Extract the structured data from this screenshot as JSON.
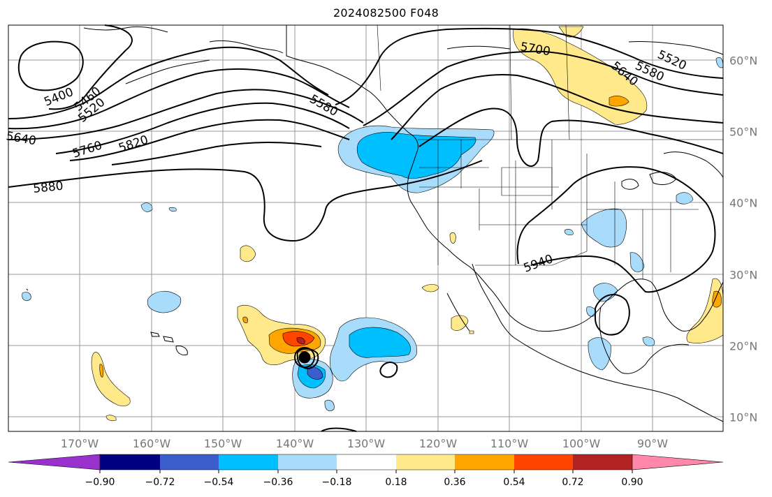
{
  "title": "2024082500 F048",
  "colors": {
    "coast": "#000000",
    "contour": "#000000",
    "grid": "#999999",
    "tick_label": "#777777",
    "bins": [
      "#9932CC",
      "#000080",
      "#3A5FCD",
      "#00BFFF",
      "#A8DCFA",
      "#FFFFFF",
      "#FFE98A",
      "#FFA500",
      "#FF4500",
      "#B22222",
      "#FF88AA"
    ]
  },
  "map": {
    "lon_labels": [
      "170°W",
      "160°W",
      "150°W",
      "140°W",
      "130°W",
      "120°W",
      "110°W",
      "100°W",
      "90°W"
    ],
    "lat_labels": [
      "60°N",
      "50°N",
      "40°N",
      "30°N",
      "20°N",
      "10°N"
    ],
    "contour_labels": [
      "5400",
      "5460",
      "5520",
      "5580",
      "5640",
      "5700",
      "5760",
      "5820",
      "5880",
      "5940",
      "5520",
      "5580",
      "5640"
    ],
    "storm_marker_icon": "hurricane-center-icon"
  },
  "colorbar": {
    "ticks": [
      "−0.90",
      "−0.72",
      "−0.54",
      "−0.36",
      "−0.18",
      "0.18",
      "0.36",
      "0.54",
      "0.72",
      "0.90"
    ]
  }
}
